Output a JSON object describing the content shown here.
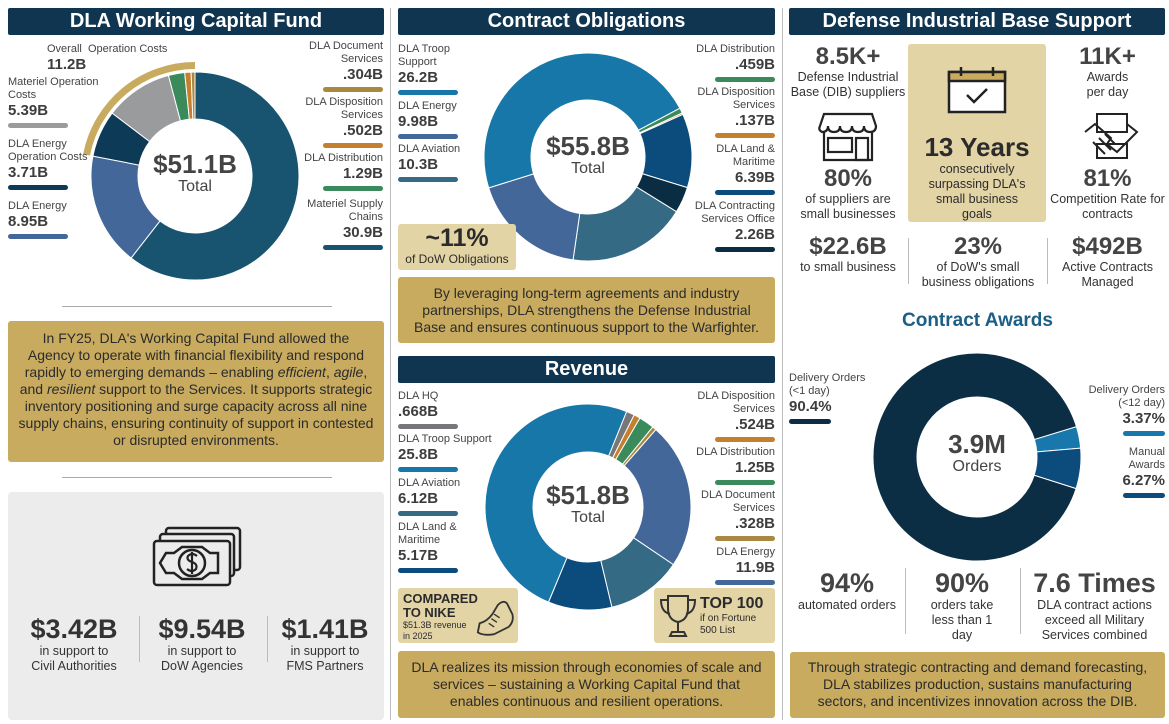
{
  "working_capital_fund": {
    "title": "DLA Working Capital Fund",
    "summary_parts": [
      "In FY25, DLA's Working Capital Fund allowed the Agency to operate with financial flexibility and respond rapidly to emerging demands – enabling ",
      "efficient",
      ", ",
      "agile",
      ", and ",
      "resilient",
      " support to the Services. It supports strategic inventory positioning and surge capacity across all nine supply chains, ensuring continuity of support in contested or disrupted environments."
    ],
    "money_icon": "cash-stack-icon",
    "stats": [
      {
        "value": "$3.42B",
        "label": "in support to Civil Authorities"
      },
      {
        "value": "$9.54B",
        "label": "in support to DoW Agencies"
      },
      {
        "value": "$1.41B",
        "label": "in support to FMS Partners"
      }
    ]
  },
  "contract_obligations": {
    "title": "Contract Obligations",
    "share_value": "~11%",
    "share_label": "of DoW Obligations",
    "summary": "By leveraging long-term agreements and industry partnerships, DLA strengthens the Defense Industrial Base and ensures continuous support to the Warfighter."
  },
  "revenue": {
    "title": "Revenue",
    "nike_title": "COMPARED TO NIKE",
    "nike_text": "$51.3B revenue in 2025",
    "nike_icon": "sneaker-icon",
    "top_title": "TOP 100",
    "top_text": "if on Fortune 500 List",
    "top_icon": "trophy-icon",
    "summary": "DLA realizes its mission through economies of scale and services – sustaining a Working Capital Fund that enables continuous and resilient operations."
  },
  "dib_support": {
    "title": "Defense Industrial Base Support",
    "suppliers": {
      "value": "8.5K+",
      "label": "Defense Industrial Base (DIB) suppliers"
    },
    "small_pct": {
      "value": "80%",
      "label": "of suppliers are small businesses",
      "icon": "storefront-icon"
    },
    "years": {
      "value": "13 Years",
      "label": "consecutively surpassing DLA's small business goals",
      "icon": "calendar-check-icon"
    },
    "awards": {
      "value": "11K+",
      "label": "Awards per day"
    },
    "competition": {
      "value": "81%",
      "label": "Competition Rate for contracts",
      "icon": "handshake-icon"
    },
    "bottom": [
      {
        "value": "$22.6B",
        "label": "to small business"
      },
      {
        "value": "23%",
        "label": "of DoW's small business obligations"
      },
      {
        "value": "$492B",
        "label": "Active Contracts Managed"
      }
    ]
  },
  "contract_awards": {
    "title": "Contract Awards",
    "stats": [
      {
        "value": "94%",
        "label": "automated orders"
      },
      {
        "value": "90%",
        "label": "orders take less than 1 day"
      },
      {
        "value": "7.6 Times",
        "label": "DLA contract actions exceed all Military Services combined"
      }
    ],
    "summary": "Through strategic contracting and demand forecasting, DLA stabilizes production, sustains manufacturing sectors, and incentivizes innovation across the DIB."
  },
  "colors": {
    "navy": "#0f3550",
    "gold": "#c8ab5e",
    "light_gold": "#e3d4a6",
    "accent_blue": "#1b5e86"
  },
  "chart_data": [
    {
      "type": "pie",
      "variant": "donut",
      "unit": "B USD",
      "center_value": "$51.1B",
      "center_label": "Total",
      "series": [
        {
          "label": "Materiel Supply Chains",
          "value": 30.9,
          "display": "30.9B",
          "color": "#18536f"
        },
        {
          "label": "DLA Energy",
          "value": 8.95,
          "display": "8.95B",
          "color": "#44679a"
        },
        {
          "label": "DLA Energy Operation Costs",
          "value": 3.71,
          "display": "3.71B",
          "color": "#0c3a57"
        },
        {
          "label": "Materiel Operation Costs",
          "value": 5.39,
          "display": "5.39B",
          "color": "#9a9b9d"
        },
        {
          "label": "DLA Distribution",
          "value": 1.29,
          "display": "1.29B",
          "color": "#3a8a5c"
        },
        {
          "label": "DLA Disposition Services",
          "value": 0.502,
          "display": ".502B",
          "color": "#c47f2f"
        },
        {
          "label": "DLA Document Services",
          "value": 0.304,
          "display": ".304B",
          "color": "#a8893f"
        }
      ],
      "group": {
        "label": "Overall  Operation Costs",
        "value": 11.2,
        "display": "11.2B",
        "color": "#c8ab5e"
      }
    },
    {
      "type": "pie",
      "variant": "donut",
      "unit": "B USD",
      "center_value": "$55.8B",
      "center_label": "Total",
      "series": [
        {
          "label": "DLA Distribution",
          "value": 0.459,
          "display": ".459B",
          "color": "#3a8a5c"
        },
        {
          "label": "DLA Disposition Services",
          "value": 0.137,
          "display": ".137B",
          "color": "#c47f2f"
        },
        {
          "label": "DLA Land & Maritime",
          "value": 6.39,
          "display": "6.39B",
          "color": "#0b4c7c"
        },
        {
          "label": "DLA Contracting Services Office",
          "value": 2.26,
          "display": "2.26B",
          "color": "#0a2d44"
        },
        {
          "label": "DLA Aviation",
          "value": 10.3,
          "display": "10.3B",
          "color": "#356a85"
        },
        {
          "label": "DLA Energy",
          "value": 9.98,
          "display": "9.98B",
          "color": "#44679a"
        },
        {
          "label": "DLA Troop Support",
          "value": 26.2,
          "display": "26.2B",
          "color": "#1777a8"
        }
      ]
    },
    {
      "type": "pie",
      "variant": "donut",
      "unit": "B USD",
      "center_value": "$51.8B",
      "center_label": "Total",
      "series": [
        {
          "label": "DLA HQ",
          "value": 0.668,
          "display": ".668B",
          "color": "#76777a"
        },
        {
          "label": "DLA Disposition Services",
          "value": 0.524,
          "display": ".524B",
          "color": "#c47f2f"
        },
        {
          "label": "DLA Distribution",
          "value": 1.25,
          "display": "1.25B",
          "color": "#3a8a5c"
        },
        {
          "label": "DLA Document Services",
          "value": 0.328,
          "display": ".328B",
          "color": "#a8893f"
        },
        {
          "label": "DLA Energy",
          "value": 11.9,
          "display": "11.9B",
          "color": "#44679a"
        },
        {
          "label": "DLA Aviation",
          "value": 6.12,
          "display": "6.12B",
          "color": "#356a85"
        },
        {
          "label": "DLA Land & Maritime",
          "value": 5.17,
          "display": "5.17B",
          "color": "#0b4c7c"
        },
        {
          "label": "DLA Troop Support",
          "value": 25.8,
          "display": "25.8B",
          "color": "#1777a8"
        }
      ]
    },
    {
      "type": "pie",
      "variant": "donut",
      "unit": "%",
      "center_value": "3.9M",
      "center_label": "Orders",
      "series": [
        {
          "label": "Delivery Orders (<12 day)",
          "value": 3.37,
          "display": "3.37%",
          "color": "#1878ab"
        },
        {
          "label": "Manual Awards",
          "value": 6.27,
          "display": "6.27%",
          "color": "#0b4c7c"
        },
        {
          "label": "Delivery Orders (<1 day)",
          "value": 90.4,
          "display": "90.4%",
          "color": "#0b2e45"
        }
      ]
    }
  ]
}
